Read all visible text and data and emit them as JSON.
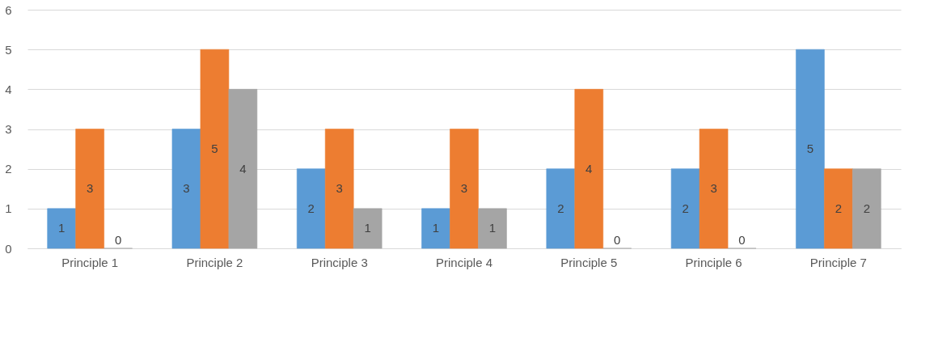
{
  "chart_data": {
    "type": "bar",
    "categories": [
      "Principle 1",
      "Principle 2",
      "Principle 3",
      "Principle 4",
      "Principle 5",
      "Principle 6",
      "Principle 7"
    ],
    "series": [
      {
        "color": "#5b9bd5",
        "values": [
          1,
          3,
          2,
          1,
          2,
          2,
          5
        ]
      },
      {
        "color": "#ed7d31",
        "values": [
          3,
          5,
          3,
          3,
          4,
          3,
          2
        ]
      },
      {
        "color": "#a5a5a5",
        "values": [
          0,
          4,
          1,
          1,
          0,
          0,
          2
        ]
      }
    ],
    "ylim": [
      0,
      6
    ],
    "yticks": [
      0,
      1,
      2,
      3,
      4,
      5,
      6
    ],
    "grid": "y",
    "data_labels": true
  }
}
